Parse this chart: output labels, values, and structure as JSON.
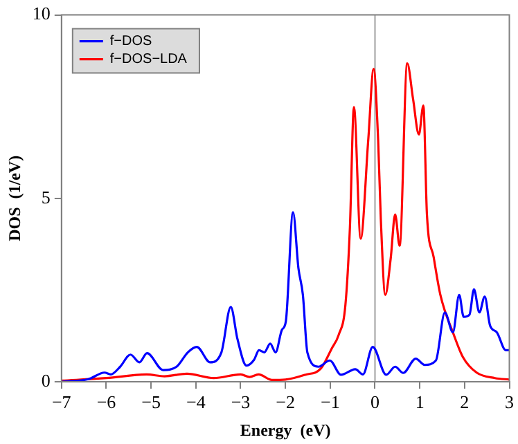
{
  "chart_data": {
    "type": "line",
    "xlabel": "Energy  (eV)",
    "ylabel": "DOS  (1/eV)",
    "xlim": [
      -7,
      3
    ],
    "ylim": [
      0,
      10
    ],
    "xticks": [
      -7,
      -6,
      -5,
      -4,
      -3,
      -2,
      -1,
      0,
      1,
      2,
      3
    ],
    "yticks": [
      0,
      5,
      10
    ],
    "grid": false,
    "legend": "top left",
    "marker": "none",
    "line_style": "solid",
    "ref_lines": [
      {
        "axis": "x",
        "value": 0,
        "color": "#a0a0a0"
      }
    ],
    "series": [
      {
        "name": "f−DOS",
        "color": "#0000ff",
        "x": [
          -7,
          -6.4,
          -6.04,
          -5.9,
          -5.69,
          -5.46,
          -5.26,
          -5.09,
          -4.73,
          -4.43,
          -4.18,
          -3.98,
          -3.68,
          -3.43,
          -3.22,
          -3.07,
          -2.87,
          -2.7,
          -2.59,
          -2.47,
          -2.34,
          -2.22,
          -2.08,
          -1.99,
          -1.83,
          -1.71,
          -1.61,
          -1.51,
          -1.26,
          -1.01,
          -0.76,
          -0.44,
          -0.27,
          -0.05,
          0.25,
          0.45,
          0.63,
          0.91,
          1.11,
          1.36,
          1.56,
          1.74,
          1.88,
          1.98,
          2.11,
          2.21,
          2.33,
          2.45,
          2.57,
          2.72,
          2.92,
          3
        ],
        "values": [
          0,
          0.07,
          0.25,
          0.2,
          0.41,
          0.74,
          0.53,
          0.78,
          0.32,
          0.41,
          0.8,
          0.95,
          0.53,
          0.8,
          2.04,
          1.16,
          0.44,
          0.6,
          0.86,
          0.8,
          1.04,
          0.8,
          1.41,
          1.65,
          4.62,
          3.1,
          2.37,
          0.8,
          0.41,
          0.58,
          0.19,
          0.34,
          0.2,
          0.95,
          0.19,
          0.41,
          0.24,
          0.63,
          0.46,
          0.58,
          1.89,
          1.35,
          2.37,
          1.77,
          1.83,
          2.52,
          1.89,
          2.32,
          1.53,
          1.35,
          0.86,
          0.86
        ]
      },
      {
        "name": "f−DOS−LDA",
        "color": "#ff0000",
        "x": [
          -7,
          -6,
          -5.1,
          -4.7,
          -4.2,
          -3.6,
          -3,
          -2.8,
          -2.6,
          -2.3,
          -2,
          -1.56,
          -1.21,
          -0.96,
          -0.81,
          -0.66,
          -0.56,
          -0.47,
          -0.32,
          -0.15,
          -0.03,
          0.07,
          0.13,
          0.23,
          0.35,
          0.45,
          0.55,
          0.72,
          0.85,
          0.98,
          1.08,
          1.16,
          1.31,
          1.46,
          1.76,
          1.96,
          2.27,
          2.68,
          3
        ],
        "values": [
          0.03,
          0.1,
          0.2,
          0.15,
          0.22,
          0.1,
          0.2,
          0.13,
          0.2,
          0.05,
          0.06,
          0.19,
          0.36,
          0.92,
          1.28,
          2.1,
          4.2,
          7.49,
          3.9,
          6.6,
          8.53,
          6.6,
          4.44,
          2.37,
          3.35,
          4.56,
          3.71,
          8.68,
          7.71,
          6.74,
          7.53,
          4.56,
          3.4,
          2.37,
          1.28,
          0.68,
          0.25,
          0.1,
          0.06
        ]
      }
    ]
  }
}
